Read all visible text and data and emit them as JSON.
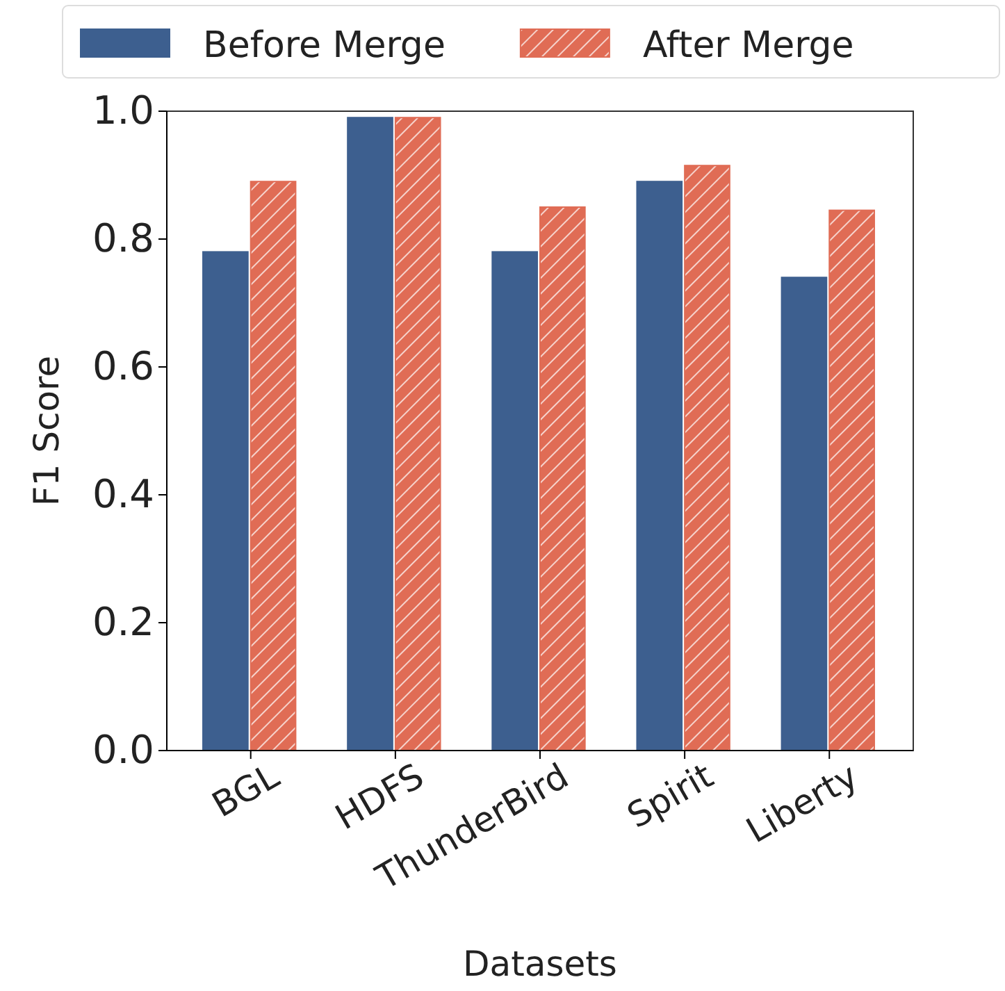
{
  "chart_data": {
    "type": "bar",
    "xlabel": "Datasets",
    "ylabel": "F1 Score",
    "categories": [
      "BGL",
      "HDFS",
      "ThunderBird",
      "Spirit",
      "Liberty"
    ],
    "series": [
      {
        "name": "Before Merge",
        "color": "#3d5f8f",
        "values": [
          0.78,
          0.99,
          0.78,
          0.89,
          0.74
        ]
      },
      {
        "name": "After Merge",
        "color": "#e06c55",
        "values": [
          0.89,
          0.99,
          0.85,
          0.915,
          0.845
        ]
      }
    ],
    "ylim": [
      0,
      1
    ],
    "yticks": [
      {
        "value": 0,
        "label": "0.0"
      },
      {
        "value": 0.2,
        "label": "0.2"
      },
      {
        "value": 0.4,
        "label": "0.4"
      },
      {
        "value": 0.6,
        "label": "0.6"
      },
      {
        "value": 0.8,
        "label": "0.8"
      },
      {
        "value": 1,
        "label": "1.0"
      }
    ],
    "legend": "top",
    "grid": false
  }
}
